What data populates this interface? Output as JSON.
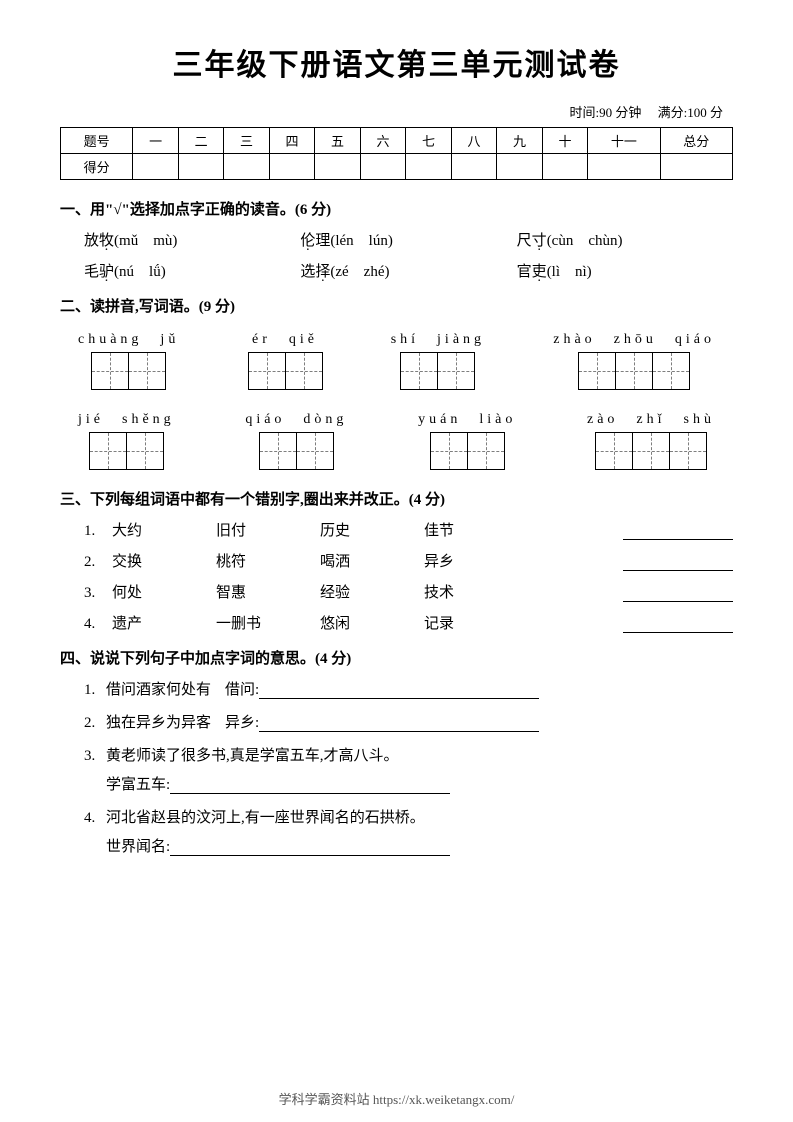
{
  "title": "三年级下册语文第三单元测试卷",
  "meta": {
    "time": "时间:90 分钟",
    "full": "满分:100 分"
  },
  "scoreTable": {
    "headers": [
      "题号",
      "一",
      "二",
      "三",
      "四",
      "五",
      "六",
      "七",
      "八",
      "九",
      "十",
      "十一",
      "总分"
    ],
    "row2_label": "得分"
  },
  "s1": {
    "title": "一、用\"√\"选择加点字正确的读音。(6 分)",
    "rows": [
      [
        {
          "pre": "放",
          "dot": "牧",
          "pinyin": "(mǔ　mù)"
        },
        {
          "pre": "",
          "dot": "伦",
          "post": "理",
          "pinyin": "(lén　lún)"
        },
        {
          "pre": "尺",
          "dot": "寸",
          "pinyin": "(cùn　chùn)"
        }
      ],
      [
        {
          "pre": "毛",
          "dot": "驴",
          "pinyin": "(nú　lǘ)"
        },
        {
          "pre": "选",
          "dot": "择",
          "pinyin": "(zé　zhé)"
        },
        {
          "pre": "官",
          "dot": "吏",
          "pinyin": "(lì　nì)"
        }
      ]
    ]
  },
  "s2": {
    "title": "二、读拼音,写词语。(9 分)",
    "rows": [
      [
        {
          "pinyin": "chuàng　jǔ",
          "boxes": 2
        },
        {
          "pinyin": "ér　qiě",
          "boxes": 2
        },
        {
          "pinyin": "shí　jiàng",
          "boxes": 2
        },
        {
          "pinyin": "zhào　zhōu　qiáo",
          "boxes": 3
        }
      ],
      [
        {
          "pinyin": "jié　shěng",
          "boxes": 2
        },
        {
          "pinyin": "qiáo　dòng",
          "boxes": 2
        },
        {
          "pinyin": "yuán　liào",
          "boxes": 2
        },
        {
          "pinyin": "zào　zhǐ　shù",
          "boxes": 3
        }
      ]
    ]
  },
  "s3": {
    "title": "三、下列每组词语中都有一个错别字,圈出来并改正。(4 分)",
    "rows": [
      {
        "num": "1.",
        "words": [
          "大约",
          "旧付",
          "历史",
          "佳节"
        ]
      },
      {
        "num": "2.",
        "words": [
          "交换",
          "桃符",
          "喝洒",
          "异乡"
        ]
      },
      {
        "num": "3.",
        "words": [
          "何处",
          "智惠",
          "经验",
          "技术"
        ]
      },
      {
        "num": "4.",
        "words": [
          "遗产",
          "一删书",
          "悠闲",
          "记录"
        ]
      }
    ]
  },
  "s4": {
    "title": "四、说说下列句子中加点字词的意思。(4 分)",
    "items": [
      {
        "num": "1.",
        "sentence": "借问酒家何处有",
        "label": "借问:"
      },
      {
        "num": "2.",
        "sentence": "独在异乡为异客",
        "label": "异乡:"
      },
      {
        "num": "3.",
        "sentence": "黄老师读了很多书,真是学富五车,才高八斗。",
        "label": "学富五车:"
      },
      {
        "num": "4.",
        "sentence": "河北省赵县的汶河上,有一座世界闻名的石拱桥。",
        "label": "世界闻名:"
      }
    ]
  },
  "footer": "学科学霸资料站 https://xk.weiketangx.com/"
}
